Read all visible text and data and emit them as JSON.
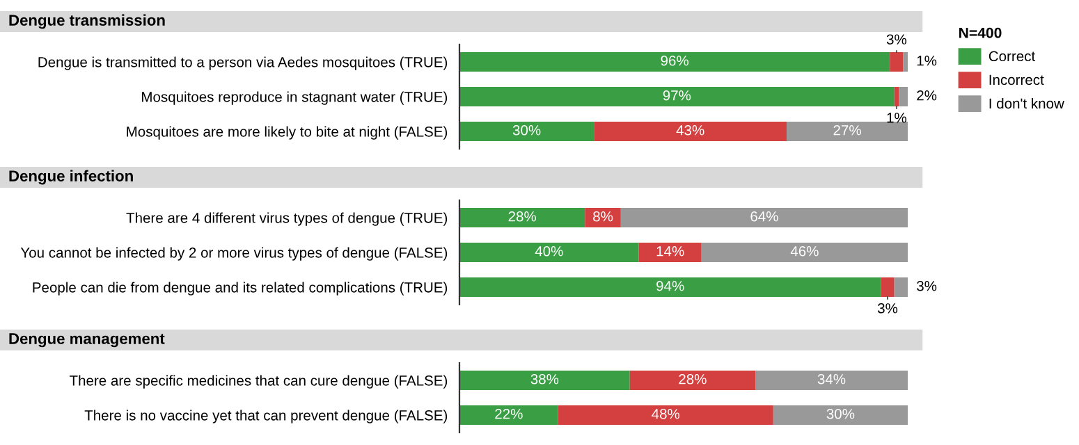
{
  "chart_data": [
    {
      "type": "bar",
      "orientation": "horizontal",
      "stacked": true,
      "title": "Dengue transmission",
      "legend": "right",
      "legend_title": "N=400",
      "categories": [
        "Dengue is transmitted to a person via Aedes mosquitoes (TRUE)",
        "Mosquitoes reproduce in stagnant water (TRUE)",
        "Mosquitoes are more likely to bite at night (FALSE)"
      ],
      "series": [
        {
          "name": "Correct",
          "color": "#3a9e44",
          "values": [
            96,
            97,
            30
          ],
          "value_labels": [
            "96%",
            "97%",
            "30%"
          ]
        },
        {
          "name": "Incorrect",
          "color": "#d43f3f",
          "values": [
            3,
            1,
            43
          ],
          "value_labels": [
            "3%",
            "1%",
            "43%"
          ]
        },
        {
          "name": "I don't know",
          "color": "#999999",
          "values": [
            1,
            2,
            27
          ],
          "value_labels": [
            "1%",
            "2%",
            "27%"
          ]
        }
      ]
    },
    {
      "type": "bar",
      "orientation": "horizontal",
      "stacked": true,
      "title": "Dengue infection",
      "categories": [
        "There are 4 different virus types of dengue (TRUE)",
        "You cannot be infected by 2 or more virus types of dengue (FALSE)",
        "People can die from dengue and its related complications (TRUE)"
      ],
      "series": [
        {
          "color": "#3a9e44",
          "values": [
            28,
            40,
            94
          ],
          "value_labels": [
            "28%",
            "40%",
            "94%"
          ]
        },
        {
          "color": "#d43f3f",
          "values": [
            8,
            14,
            3
          ],
          "value_labels": [
            "8%",
            "14%",
            "3%"
          ]
        },
        {
          "color": "#999999",
          "values": [
            64,
            46,
            3
          ],
          "value_labels": [
            "64%",
            "46%",
            "3%"
          ]
        }
      ]
    },
    {
      "type": "bar",
      "orientation": "horizontal",
      "stacked": true,
      "title": "Dengue management",
      "categories": [
        "There are specific medicines that can cure dengue (FALSE)",
        "There is no vaccine yet that can prevent dengue (FALSE)"
      ],
      "series": [
        {
          "color": "#3a9e44",
          "values": [
            38,
            22
          ],
          "value_labels": [
            "38%",
            "22%"
          ]
        },
        {
          "color": "#d43f3f",
          "values": [
            28,
            48
          ],
          "value_labels": [
            "28%",
            "48%"
          ]
        },
        {
          "color": "#999999",
          "values": [
            34,
            30
          ],
          "value_labels": [
            "34%",
            "30%"
          ]
        }
      ]
    }
  ]
}
